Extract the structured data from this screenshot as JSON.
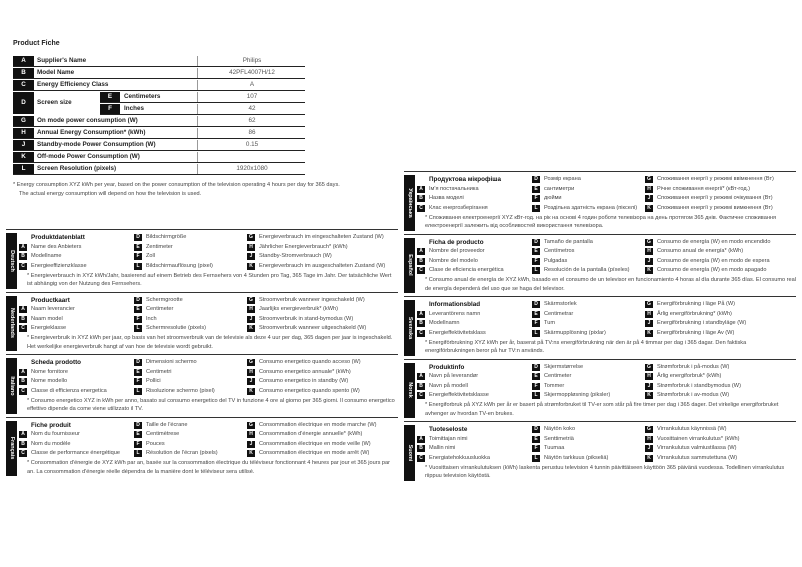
{
  "title": "Product Fiche",
  "table": [
    {
      "letter": "A",
      "label": "Supplier's Name",
      "value": "Philips"
    },
    {
      "letter": "B",
      "label": "Model Name",
      "value": "42PFL4007H/12"
    },
    {
      "letter": "C",
      "label": "Energy Efficiency Class",
      "value": "A"
    },
    {
      "letter": "D",
      "label": "Screen size",
      "sub": [
        {
          "letter": "E",
          "label": "Centimeters",
          "value": "107"
        },
        {
          "letter": "F",
          "label": "Inches",
          "value": "42"
        }
      ]
    },
    {
      "letter": "G",
      "label": "On mode power consumption (W)",
      "value": "62"
    },
    {
      "letter": "H",
      "label": "Annual Energy Consumption* (kWh)",
      "value": "86"
    },
    {
      "letter": "J",
      "label": "Standby-mode Power Consumption (W)",
      "value": "0.15"
    },
    {
      "letter": "K",
      "label": "Off-mode Power Consumption (W)",
      "value": ""
    },
    {
      "letter": "L",
      "label": "Screen Resolution (pixels)",
      "value": "1920x1080"
    }
  ],
  "footnote": [
    "* Energy consumption XYZ kWh per year, based on the power consumption of the television operating 4 hours per day for 365 days.",
    "The actual energy consumption will depend on how the television is used."
  ],
  "languages": [
    {
      "name": "Deutsch",
      "title": "Produktdatenblatt",
      "A": "Name des Anbieters",
      "B": "Modellname",
      "C": "Energieeffizienzklasse",
      "D": "Bildschirmgröße",
      "E": "Zentimeter",
      "F": "Zoll",
      "L": "Bildschirmauflösung (pixel)",
      "G": "Energieverbrauch im eingeschalteten Zustand (W)",
      "H": "Jährlicher Energieverbrauch* (kWh)",
      "J": "Standby-Stromverbrauch (W)",
      "K": "Energieverbrauch im ausgeschalteten Zustand (W)",
      "note": "* Energieverbrauch in XYZ kWh/Jahr, basierend auf einem Betrieb des Fernsehers von 4 Stunden pro Tag, 365 Tage im Jahr. Der tatsächliche Wert ist abhängig von der Nutzung des Fernsehers."
    },
    {
      "name": "Nederlands",
      "title": "Productkaart",
      "A": "Naam leverancier",
      "B": "Naam model",
      "C": "Energieklasse",
      "D": "Schermgrootte",
      "E": "Centimeter",
      "F": "Inch",
      "L": "Schermresolutie (pixels)",
      "G": "Stroomverbruik wanneer ingeschakeld (W)",
      "H": "Jaarlijks energieverbruik* (kWh)",
      "J": "Stroomverbruik in stand-bymodus (W)",
      "K": "Stroomverbruik wanneer uitgeschakeld (W)",
      "note": "* Energieverbruik in XYZ kWh per jaar, op basis van het stroomverbruik van de televisie als deze 4 uur per dag, 365 dagen per jaar is ingeschakeld. Het werkelijke energieverbruik hangt af van hoe de televisie wordt gebruikt."
    },
    {
      "name": "Italiano",
      "title": "Scheda prodotto",
      "A": "Nome fornitore",
      "B": "Nome modello",
      "C": "Classe di efficienza energetica",
      "D": "Dimensioni schermo",
      "E": "Centimetri",
      "F": "Pollici",
      "L": "Risoluzione schermo (pixel)",
      "G": "Consumo energetico quando acceso (W)",
      "H": "Consumo energetico annuale* (kWh)",
      "J": "Consumo energetico in standby (W)",
      "K": "Consumo energetico quando spento (W)",
      "note": "* Consumo energetico XYZ in kWh per anno, basato sul consumo energetico del TV in funzione 4 ore al giorno per 365 giorni. Il consumo energetico effettivo dipende da come viene utilizzato il TV."
    },
    {
      "name": "Français",
      "title": "Fiche produit",
      "A": "Nom du fournisseur",
      "B": "Nom du modèle",
      "C": "Classe de performance énergétique",
      "D": "Taille de l'écrane",
      "E": "Centimètrese",
      "F": "Pouces",
      "L": "Résolution de l'écran (pixels)",
      "G": "Consommation électrique en mode marche (W)",
      "H": "Consommation d'énergie annuelle* (kWh)",
      "J": "Consommation électrique en mode veille (W)",
      "K": "Consommation électrique en mode arrêt (W)",
      "note": "* Consommation d'énergie de XYZ kWh par an, basée sur la consommation électrique du téléviseur fonctionnant 4 heures par jour et 365 jours par an. La consommation d'énergie réelle dépendra de la manière dont le téléviseur sera utilisé."
    },
    {
      "name": "Українська",
      "title": "Продуктова мікрофіша",
      "A": "Ім'я постачальника",
      "B": "Назва моделі",
      "C": "Клас енергозберігання",
      "D": "Розмір екрана",
      "E": "сантиметри",
      "F": "дюйми",
      "L": "Роздільна здатність екрана (пікселі)",
      "G": "Споживання енергії у режимі ввімкнення (Вт)",
      "H": "Річне споживання енергії* (кВт-год.)",
      "J": "Споживання енергії у режимі очікування (Вт)",
      "K": "Споживання енергії у режимі вимкнення (Вт)",
      "note": "* Споживання електроенергії XYZ кВт-год. на рік на основі 4 годин роботи телевізора на день протягом 365 днів. Фактичне споживання електроенергії залежить від особливостей використання телевізора."
    },
    {
      "name": "Español",
      "title": "Ficha de producto",
      "A": "Nombre del proveedor",
      "B": "Nombre del modelo",
      "C": "Clase de eficiencia energética",
      "D": "Tamaño de pantalla",
      "E": "Centímetros",
      "F": "Pulgadas",
      "L": "Resolución de la pantalla (píxeles)",
      "G": "Consumo de energía (W) en modo encendido",
      "H": "Consumo anual de energía* (kWh)",
      "J": "Consumo de energía (W) en modo de espera",
      "K": "Consumo de energía (W) en modo apagado",
      "note": "* Consumo anual de energía de XYZ kWh, basado en el consumo de un televisor en funcionamiento 4 horas al día durante 365 días. El consumo real de energía dependerá del uso que se haga del televisor."
    },
    {
      "name": "Svenska",
      "title": "Informationsblad",
      "A": "Leverantörens namn",
      "B": "Modellnamn",
      "C": "Energieffektivitetsklass",
      "D": "Skärmstorlek",
      "E": "Centimetrar",
      "F": "Tum",
      "L": "Skärmupplösning (pixlar)",
      "G": "Energiförbrukning i läge På (W)",
      "H": "Årlig energiförbrukning* (kWh)",
      "J": "Energiförbrukning i standbyläge (W)",
      "K": "Energiförbrukning i läge Av (W)",
      "note": "* Energiförbrukning XYZ kWh per år, baserat på TV:ns energiförbrukning när den är på 4 timmar per dag i 365 dagar. Den faktiska energiförbrukningen beror på hur TV:n används."
    },
    {
      "name": "Norsk",
      "title": "Produktinfo",
      "A": "Navn på leverandør",
      "B": "Navn på modell",
      "C": "Energieffektivitetsklasse",
      "D": "Skjermstørrelse",
      "E": "Centimeter",
      "F": "Tommer",
      "L": "Skjermoppløsning (piksler)",
      "G": "Strømforbruk i på-modus (W)",
      "H": "Årlig energiforbruk* (kWh)",
      "J": "Strømforbruk i standbymodus (W)",
      "K": "Strømforbruk i av-modus (W)",
      "note": "* Energiforbruk på XYZ kWh per år er basert på strømforbruket til TV-er som står på fire timer per dag i 365 dager. Det virkelige energiforbruket avhenger av hvordan TV-en brukes."
    },
    {
      "name": "Suomi",
      "title": "Tuoteseloste",
      "A": "Toimittajan nimi",
      "B": "Mallin nimi",
      "C": "Energiatehokkuusluokka",
      "D": "Näytön koko",
      "E": "Senttimetriä",
      "F": "Tuumaa",
      "L": "Näytön tarkkuus (pikseliä)",
      "G": "Virrankulutus käynnissä (W)",
      "H": "Vuosittainen virrankulutus* (kWh)",
      "J": "Virrankulutus valmiustilassa (W)",
      "K": "Virrankulutus sammutettuna (W)",
      "note": "* Vuosittaisen virrankulutuksen (kWh) laskenta perustuu television 4 tunnin päivittäiseen käyttöön 365 päivänä vuodessa. Todellinen virrankulutus riippuu television käytöstä."
    }
  ]
}
